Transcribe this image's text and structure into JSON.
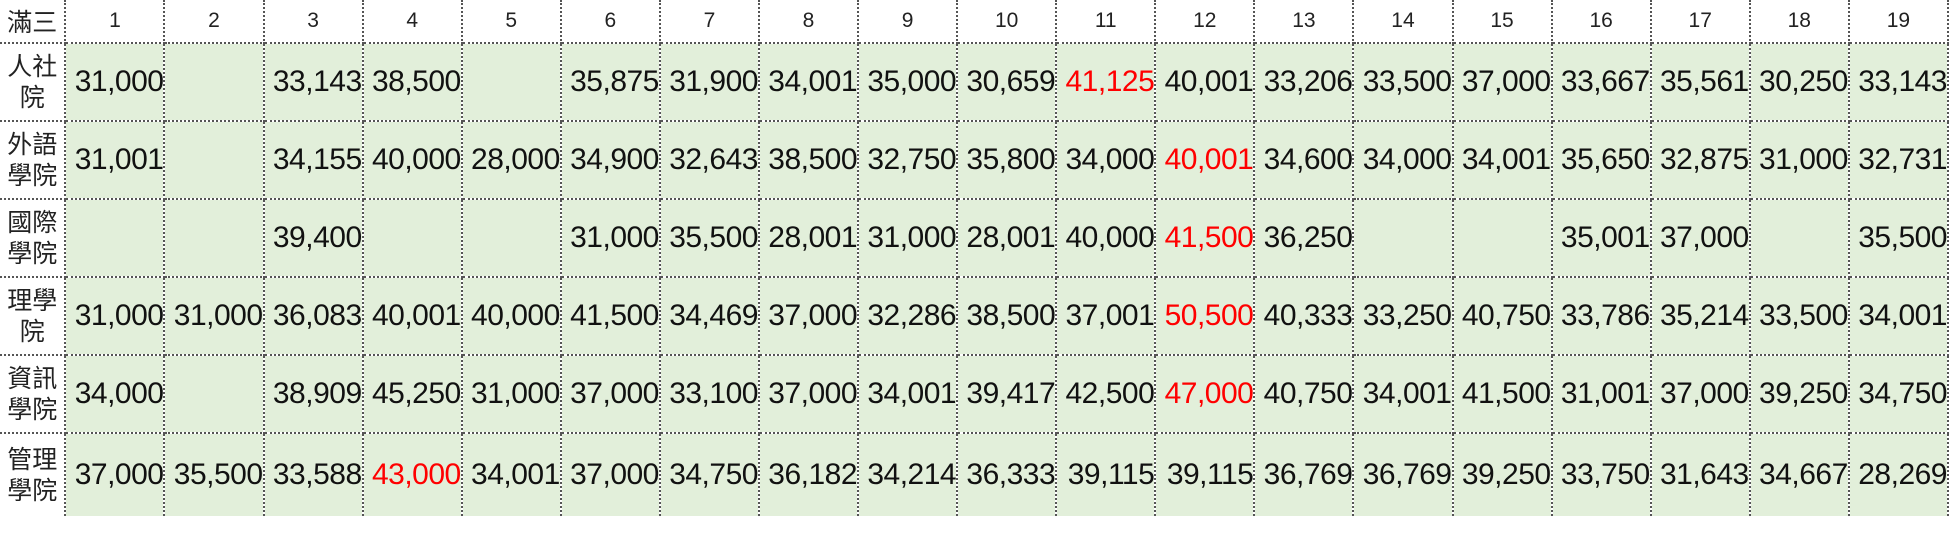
{
  "sheet": {
    "corner_label": "滿三",
    "columns": [
      "1",
      "2",
      "3",
      "4",
      "5",
      "6",
      "7",
      "8",
      "9",
      "10",
      "11",
      "12",
      "13",
      "14",
      "15",
      "16",
      "17",
      "18",
      "19"
    ],
    "rows": [
      {
        "label": "人社院",
        "cells": [
          "31,000",
          "",
          "33,143",
          "38,500",
          "",
          "35,875",
          "31,900",
          "34,001",
          "35,000",
          "30,659",
          "41,125",
          "40,001",
          "33,206",
          "33,500",
          "37,000",
          "33,667",
          "35,561",
          "30,250",
          "33,143"
        ],
        "highlight": [
          10
        ]
      },
      {
        "label": "外語學院",
        "cells": [
          "31,001",
          "",
          "34,155",
          "40,000",
          "28,000",
          "34,900",
          "32,643",
          "38,500",
          "32,750",
          "35,800",
          "34,000",
          "40,001",
          "34,600",
          "34,000",
          "34,001",
          "35,650",
          "32,875",
          "31,000",
          "32,731"
        ],
        "highlight": [
          11
        ]
      },
      {
        "label": "國際學院",
        "cells": [
          "",
          "",
          "39,400",
          "",
          "",
          "31,000",
          "35,500",
          "28,001",
          "31,000",
          "28,001",
          "40,000",
          "41,500",
          "36,250",
          "",
          "",
          "35,001",
          "37,000",
          "",
          "35,500"
        ],
        "highlight": [
          11
        ]
      },
      {
        "label": "理學院",
        "cells": [
          "31,000",
          "31,000",
          "36,083",
          "40,001",
          "40,000",
          "41,500",
          "34,469",
          "37,000",
          "32,286",
          "38,500",
          "37,001",
          "50,500",
          "40,333",
          "33,250",
          "40,750",
          "33,786",
          "35,214",
          "33,500",
          "34,001"
        ],
        "highlight": [
          11
        ]
      },
      {
        "label": "資訊學院",
        "cells": [
          "34,000",
          "",
          "38,909",
          "45,250",
          "31,000",
          "37,000",
          "33,100",
          "37,000",
          "34,001",
          "39,417",
          "42,500",
          "47,000",
          "40,750",
          "34,001",
          "41,500",
          "31,001",
          "37,000",
          "39,250",
          "34,750"
        ],
        "highlight": [
          11
        ]
      },
      {
        "label": "管理學院",
        "cells": [
          "37,000",
          "35,500",
          "33,588",
          "43,000",
          "34,001",
          "37,000",
          "34,750",
          "36,182",
          "34,214",
          "36,333",
          "39,115",
          "39,115",
          "36,769",
          "36,769",
          "39,250",
          "33,750",
          "31,643",
          "34,667",
          "28,269"
        ],
        "highlight": [
          3
        ]
      }
    ],
    "colors": {
      "cell_fill": "#e2efda",
      "highlight_text": "#ff0000",
      "text": "#111111"
    }
  }
}
